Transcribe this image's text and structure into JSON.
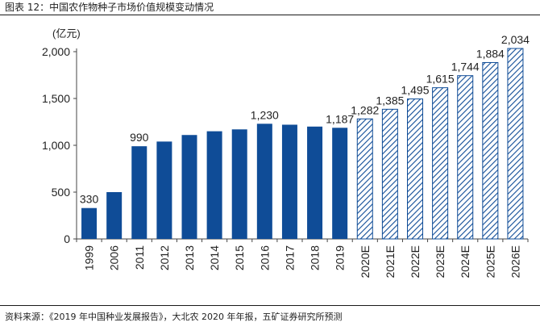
{
  "figure": {
    "title": "图表 12：中国农作物种子市场价值规模变动情况",
    "source": "资料来源：《2019 年中国种业发展报告》，大北农 2020 年年报，五矿证券研究所预测"
  },
  "colors": {
    "actual_bar": "#0f4c97",
    "forecast_hatch": "#0f4c97",
    "axis": "#444444",
    "text": "#222222"
  },
  "chart_data": {
    "type": "bar",
    "unit_label": "(亿元)",
    "categories": [
      "1999",
      "2006",
      "2011",
      "2012",
      "2013",
      "2014",
      "2015",
      "2016",
      "2017",
      "2018",
      "2019",
      "2020E",
      "2021E",
      "2022E",
      "2023E",
      "2024E",
      "2025E",
      "2026E"
    ],
    "values": [
      330,
      500,
      990,
      1040,
      1110,
      1150,
      1170,
      1230,
      1220,
      1200,
      1187,
      1282,
      1385,
      1495,
      1615,
      1744,
      1884,
      2034
    ],
    "forecast": [
      false,
      false,
      false,
      false,
      false,
      false,
      false,
      false,
      false,
      false,
      false,
      true,
      true,
      true,
      true,
      true,
      true,
      true
    ],
    "data_labels": [
      {
        "index": 0,
        "text": "330"
      },
      {
        "index": 2,
        "text": "990"
      },
      {
        "index": 7,
        "text": "1,230"
      },
      {
        "index": 10,
        "text": "1,187"
      },
      {
        "index": 11,
        "text": "1,282"
      },
      {
        "index": 12,
        "text": "1,385"
      },
      {
        "index": 13,
        "text": "1,495"
      },
      {
        "index": 14,
        "text": "1,615"
      },
      {
        "index": 15,
        "text": "1,744"
      },
      {
        "index": 16,
        "text": "1,884"
      },
      {
        "index": 17,
        "text": "2,034"
      }
    ],
    "ylim": [
      0,
      2000
    ],
    "yticks": [
      {
        "value": 0,
        "label": "0"
      },
      {
        "value": 500,
        "label": "500"
      },
      {
        "value": 1000,
        "label": "1,000"
      },
      {
        "value": 1500,
        "label": "1,500"
      },
      {
        "value": 2000,
        "label": "2,000"
      }
    ],
    "grid": false,
    "legend": "none"
  }
}
